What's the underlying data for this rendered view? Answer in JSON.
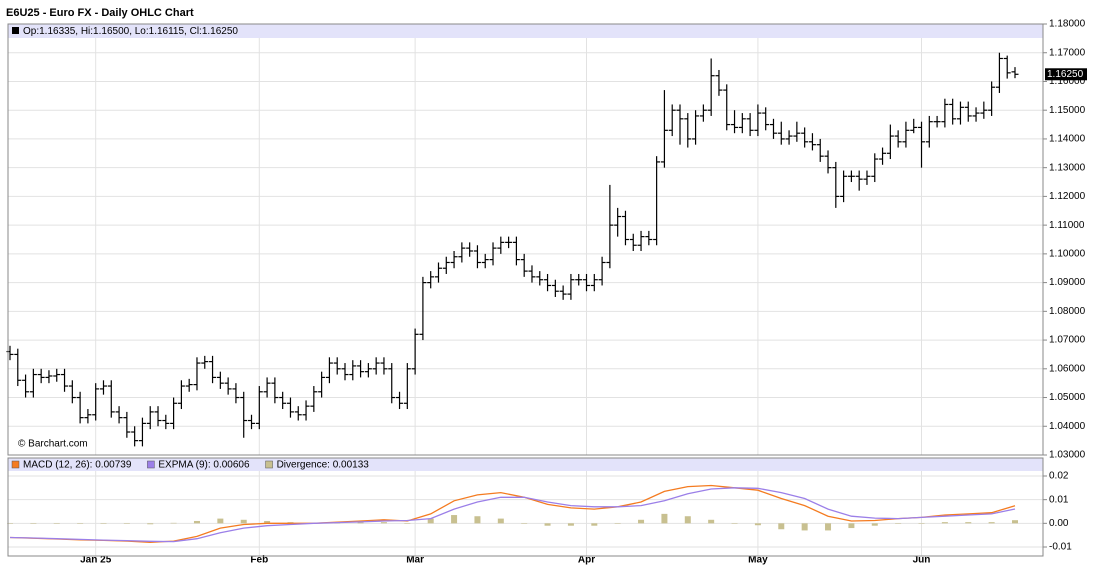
{
  "chart_data": [
    {
      "type": "ohlc",
      "title": "E6U25 - Euro FX - Daily OHLC Chart",
      "header": "Op:1.16335, Hi:1.16500, Lo:1.16115, Cl:1.16250",
      "last_price_label": "1.16250",
      "watermark": "© Barchart.com",
      "color": "#000000",
      "xlim": [
        0,
        129
      ],
      "ylim": [
        1.03,
        1.18
      ],
      "grid": true,
      "xticks": [
        {
          "value": 11,
          "label": "Jan 25"
        },
        {
          "value": 32,
          "label": "Feb"
        },
        {
          "value": 52,
          "label": "Mar"
        },
        {
          "value": 74,
          "label": "Apr"
        },
        {
          "value": 96,
          "label": "May"
        },
        {
          "value": 117,
          "label": "Jun"
        }
      ],
      "yticks": [
        {
          "value": 1.03,
          "label": "1.03000"
        },
        {
          "value": 1.04,
          "label": "1.04000"
        },
        {
          "value": 1.05,
          "label": "1.05000"
        },
        {
          "value": 1.06,
          "label": "1.06000"
        },
        {
          "value": 1.07,
          "label": "1.07000"
        },
        {
          "value": 1.08,
          "label": "1.08000"
        },
        {
          "value": 1.09,
          "label": "1.09000"
        },
        {
          "value": 1.1,
          "label": "1.10000"
        },
        {
          "value": 1.11,
          "label": "1.11000"
        },
        {
          "value": 1.12,
          "label": "1.12000"
        },
        {
          "value": 1.13,
          "label": "1.13000"
        },
        {
          "value": 1.14,
          "label": "1.14000"
        },
        {
          "value": 1.15,
          "label": "1.15000"
        },
        {
          "value": 1.16,
          "label": "1.16000"
        },
        {
          "value": 1.17,
          "label": "1.17000"
        },
        {
          "value": 1.18,
          "label": "1.18000"
        }
      ],
      "ohlc": [
        [
          1.066,
          1.068,
          1.063,
          1.065
        ],
        [
          1.065,
          1.067,
          1.054,
          1.056
        ],
        [
          1.056,
          1.058,
          1.05,
          1.052
        ],
        [
          1.052,
          1.06,
          1.05,
          1.058
        ],
        [
          1.058,
          1.06,
          1.055,
          1.057
        ],
        [
          1.057,
          1.0595,
          1.055,
          1.0575
        ],
        [
          1.0575,
          1.06,
          1.0555,
          1.058
        ],
        [
          1.058,
          1.06,
          1.052,
          1.054
        ],
        [
          1.054,
          1.056,
          1.048,
          1.05
        ],
        [
          1.05,
          1.052,
          1.041,
          1.043
        ],
        [
          1.043,
          1.046,
          1.041,
          1.044
        ],
        [
          1.044,
          1.055,
          1.042,
          1.053
        ],
        [
          1.053,
          1.056,
          1.051,
          1.054
        ],
        [
          1.054,
          1.056,
          1.043,
          1.045
        ],
        [
          1.045,
          1.047,
          1.041,
          1.043
        ],
        [
          1.043,
          1.045,
          1.036,
          1.038
        ],
        [
          1.038,
          1.04,
          1.033,
          1.035
        ],
        [
          1.035,
          1.043,
          1.033,
          1.041
        ],
        [
          1.041,
          1.047,
          1.039,
          1.045
        ],
        [
          1.045,
          1.047,
          1.04,
          1.042
        ],
        [
          1.042,
          1.044,
          1.039,
          1.041
        ],
        [
          1.041,
          1.05,
          1.039,
          1.048
        ],
        [
          1.048,
          1.056,
          1.046,
          1.054
        ],
        [
          1.054,
          1.0565,
          1.052,
          1.0545
        ],
        [
          1.0545,
          1.064,
          1.0525,
          1.062
        ],
        [
          1.062,
          1.0645,
          1.06,
          1.0625
        ],
        [
          1.0625,
          1.0645,
          1.055,
          1.057
        ],
        [
          1.057,
          1.059,
          1.053,
          1.055
        ],
        [
          1.055,
          1.057,
          1.051,
          1.053
        ],
        [
          1.053,
          1.055,
          1.048,
          1.05
        ],
        [
          1.05,
          1.052,
          1.036,
          1.042
        ],
        [
          1.042,
          1.044,
          1.039,
          1.041
        ],
        [
          1.041,
          1.054,
          1.039,
          1.052
        ],
        [
          1.052,
          1.057,
          1.05,
          1.055
        ],
        [
          1.055,
          1.057,
          1.048,
          1.05
        ],
        [
          1.05,
          1.052,
          1.046,
          1.048
        ],
        [
          1.048,
          1.05,
          1.043,
          1.045
        ],
        [
          1.045,
          1.047,
          1.042,
          1.044
        ],
        [
          1.044,
          1.049,
          1.042,
          1.047
        ],
        [
          1.047,
          1.054,
          1.045,
          1.052
        ],
        [
          1.052,
          1.059,
          1.05,
          1.057
        ],
        [
          1.057,
          1.064,
          1.055,
          1.062
        ],
        [
          1.062,
          1.064,
          1.058,
          1.06
        ],
        [
          1.06,
          1.062,
          1.056,
          1.058
        ],
        [
          1.058,
          1.063,
          1.056,
          1.061
        ],
        [
          1.061,
          1.063,
          1.057,
          1.059
        ],
        [
          1.059,
          1.062,
          1.057,
          1.06
        ],
        [
          1.06,
          1.064,
          1.058,
          1.062
        ],
        [
          1.062,
          1.064,
          1.058,
          1.06
        ],
        [
          1.06,
          1.062,
          1.048,
          1.05
        ],
        [
          1.05,
          1.052,
          1.046,
          1.048
        ],
        [
          1.048,
          1.062,
          1.046,
          1.06
        ],
        [
          1.06,
          1.074,
          1.058,
          1.072
        ],
        [
          1.072,
          1.092,
          1.07,
          1.09
        ],
        [
          1.09,
          1.094,
          1.088,
          1.092
        ],
        [
          1.092,
          1.097,
          1.09,
          1.095
        ],
        [
          1.095,
          1.099,
          1.093,
          1.097
        ],
        [
          1.097,
          1.101,
          1.095,
          1.099
        ],
        [
          1.099,
          1.104,
          1.097,
          1.102
        ],
        [
          1.102,
          1.104,
          1.099,
          1.101
        ],
        [
          1.101,
          1.103,
          1.095,
          1.097
        ],
        [
          1.097,
          1.1,
          1.095,
          1.098
        ],
        [
          1.098,
          1.104,
          1.096,
          1.102
        ],
        [
          1.102,
          1.106,
          1.1,
          1.104
        ],
        [
          1.104,
          1.106,
          1.102,
          1.104
        ],
        [
          1.104,
          1.106,
          1.096,
          1.098
        ],
        [
          1.098,
          1.1,
          1.092,
          1.094
        ],
        [
          1.094,
          1.096,
          1.09,
          1.092
        ],
        [
          1.092,
          1.094,
          1.089,
          1.091
        ],
        [
          1.091,
          1.093,
          1.087,
          1.089
        ],
        [
          1.089,
          1.091,
          1.085,
          1.087
        ],
        [
          1.087,
          1.089,
          1.084,
          1.086
        ],
        [
          1.086,
          1.093,
          1.084,
          1.091
        ],
        [
          1.091,
          1.093,
          1.089,
          1.091
        ],
        [
          1.091,
          1.093,
          1.087,
          1.089
        ],
        [
          1.089,
          1.093,
          1.087,
          1.091
        ],
        [
          1.091,
          1.099,
          1.089,
          1.097
        ],
        [
          1.097,
          1.124,
          1.095,
          1.11
        ],
        [
          1.11,
          1.116,
          1.106,
          1.113
        ],
        [
          1.113,
          1.115,
          1.103,
          1.105
        ],
        [
          1.105,
          1.107,
          1.101,
          1.103
        ],
        [
          1.103,
          1.108,
          1.101,
          1.106
        ],
        [
          1.106,
          1.108,
          1.103,
          1.105
        ],
        [
          1.105,
          1.134,
          1.103,
          1.132
        ],
        [
          1.132,
          1.157,
          1.13,
          1.143
        ],
        [
          1.143,
          1.152,
          1.141,
          1.15
        ],
        [
          1.15,
          1.152,
          1.138,
          1.147
        ],
        [
          1.147,
          1.149,
          1.137,
          1.14
        ],
        [
          1.14,
          1.15,
          1.138,
          1.148
        ],
        [
          1.148,
          1.152,
          1.146,
          1.15
        ],
        [
          1.15,
          1.168,
          1.148,
          1.162
        ],
        [
          1.162,
          1.164,
          1.155,
          1.157
        ],
        [
          1.157,
          1.159,
          1.143,
          1.145
        ],
        [
          1.145,
          1.15,
          1.142,
          1.144
        ],
        [
          1.144,
          1.149,
          1.142,
          1.147
        ],
        [
          1.147,
          1.149,
          1.141,
          1.143
        ],
        [
          1.143,
          1.152,
          1.141,
          1.149
        ],
        [
          1.149,
          1.151,
          1.143,
          1.145
        ],
        [
          1.145,
          1.147,
          1.14,
          1.142
        ],
        [
          1.142,
          1.146,
          1.138,
          1.14
        ],
        [
          1.14,
          1.143,
          1.138,
          1.141
        ],
        [
          1.141,
          1.146,
          1.139,
          1.142
        ],
        [
          1.142,
          1.144,
          1.137,
          1.139
        ],
        [
          1.139,
          1.142,
          1.136,
          1.138
        ],
        [
          1.138,
          1.14,
          1.132,
          1.134
        ],
        [
          1.134,
          1.136,
          1.128,
          1.13
        ],
        [
          1.13,
          1.132,
          1.116,
          1.12
        ],
        [
          1.12,
          1.129,
          1.118,
          1.127
        ],
        [
          1.127,
          1.129,
          1.125,
          1.127
        ],
        [
          1.127,
          1.129,
          1.122,
          1.126
        ],
        [
          1.126,
          1.129,
          1.124,
          1.127
        ],
        [
          1.127,
          1.135,
          1.125,
          1.133
        ],
        [
          1.133,
          1.137,
          1.131,
          1.135
        ],
        [
          1.135,
          1.145,
          1.133,
          1.141
        ],
        [
          1.141,
          1.143,
          1.137,
          1.139
        ],
        [
          1.139,
          1.146,
          1.137,
          1.143
        ],
        [
          1.143,
          1.147,
          1.142,
          1.144
        ],
        [
          1.144,
          1.146,
          1.13,
          1.139
        ],
        [
          1.139,
          1.148,
          1.137,
          1.146
        ],
        [
          1.146,
          1.148,
          1.144,
          1.146
        ],
        [
          1.146,
          1.154,
          1.144,
          1.152
        ],
        [
          1.152,
          1.154,
          1.145,
          1.147
        ],
        [
          1.147,
          1.153,
          1.145,
          1.151
        ],
        [
          1.151,
          1.153,
          1.146,
          1.148
        ],
        [
          1.148,
          1.151,
          1.146,
          1.149
        ],
        [
          1.149,
          1.153,
          1.147,
          1.15
        ],
        [
          1.15,
          1.16,
          1.148,
          1.158
        ],
        [
          1.158,
          1.17,
          1.156,
          1.168
        ],
        [
          1.168,
          1.169,
          1.161,
          1.163
        ],
        [
          1.16335,
          1.165,
          1.16115,
          1.1625
        ]
      ]
    },
    {
      "type": "macd",
      "xlim": [
        0,
        129
      ],
      "ylim": [
        -0.0138,
        0.0276
      ],
      "grid": true,
      "yticks": [
        {
          "value": -0.01,
          "label": "-0.01"
        },
        {
          "value": 0,
          "label": "0.00"
        },
        0.01,
        0.02
      ],
      "x": [
        0,
        3,
        6,
        9,
        12,
        15,
        18,
        21,
        24,
        27,
        30,
        33,
        36,
        39,
        42,
        45,
        48,
        51,
        54,
        57,
        60,
        63,
        66,
        69,
        72,
        75,
        78,
        81,
        84,
        87,
        90,
        93,
        96,
        99,
        102,
        105,
        108,
        111,
        114,
        117,
        120,
        123,
        126,
        129
      ],
      "series": [
        {
          "name": "MACD (12, 26): 0.00739",
          "kind": "line",
          "color": "#f47b20",
          "values": [
            -0.006,
            -0.0063,
            -0.0066,
            -0.007,
            -0.0072,
            -0.0075,
            -0.008,
            -0.0075,
            -0.0055,
            -0.002,
            -0.0005,
            0.0,
            0.0,
            0.0,
            0.0005,
            0.001,
            0.0015,
            0.001,
            0.004,
            0.0095,
            0.012,
            0.013,
            0.011,
            0.008,
            0.0065,
            0.006,
            0.007,
            0.009,
            0.0135,
            0.0155,
            0.016,
            0.015,
            0.014,
            0.0105,
            0.0075,
            0.003,
            0.001,
            0.0012,
            0.002,
            0.0025,
            0.0035,
            0.004,
            0.0045,
            0.00739
          ]
        },
        {
          "name": "EXPMA (9): 0.00606",
          "kind": "line",
          "color": "#9b7fe8",
          "values": [
            -0.006,
            -0.0062,
            -0.0065,
            -0.0068,
            -0.0071,
            -0.0073,
            -0.0076,
            -0.0077,
            -0.0065,
            -0.004,
            -0.002,
            -0.001,
            -0.0005,
            0.0,
            0.0003,
            0.0006,
            0.001,
            0.0012,
            0.002,
            0.006,
            0.009,
            0.011,
            0.011,
            0.009,
            0.0075,
            0.007,
            0.007,
            0.0075,
            0.0095,
            0.0125,
            0.0145,
            0.015,
            0.0148,
            0.013,
            0.0105,
            0.006,
            0.003,
            0.0022,
            0.002,
            0.0025,
            0.003,
            0.0035,
            0.004,
            0.00606
          ]
        },
        {
          "name": "Divergence: 0.00133",
          "kind": "bar",
          "color": "#c8c090",
          "values": [
            0,
            -0.0001,
            -0.0001,
            -0.0002,
            -0.0001,
            -0.0002,
            -0.0004,
            0.0002,
            0.001,
            0.002,
            0.0015,
            0.001,
            0.0005,
            0,
            0.0002,
            0.0004,
            0.0005,
            -0.0002,
            0.002,
            0.0035,
            0.003,
            0.002,
            0,
            -0.001,
            -0.001,
            -0.001,
            0,
            0.0015,
            0.004,
            0.003,
            0.0015,
            0,
            -0.0008,
            -0.0025,
            -0.003,
            -0.003,
            -0.002,
            -0.001,
            0,
            0,
            0.0005,
            0.0005,
            0.0005,
            0.00133
          ]
        }
      ]
    }
  ]
}
